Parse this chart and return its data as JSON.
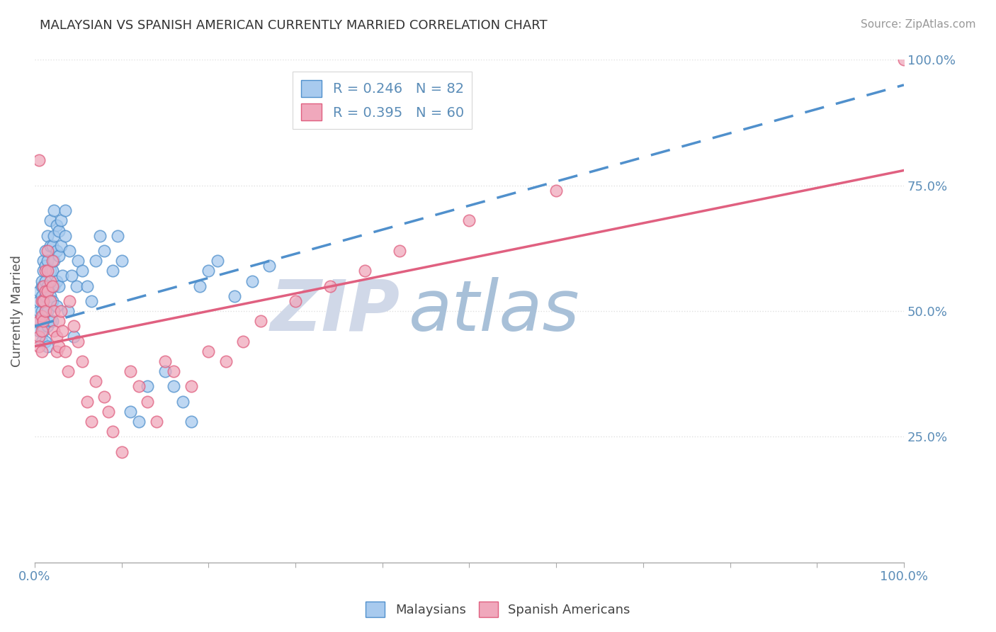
{
  "title": "MALAYSIAN VS SPANISH AMERICAN CURRENTLY MARRIED CORRELATION CHART",
  "source": "Source: ZipAtlas.com",
  "ylabel": "Currently Married",
  "R_malaysian": 0.246,
  "N_malaysian": 82,
  "R_spanish": 0.395,
  "N_spanish": 60,
  "color_malaysian": "#A8CAEE",
  "color_spanish": "#F0A8BC",
  "trend_malaysian_color": "#5090CC",
  "trend_spanish_color": "#E06080",
  "legend_label_malaysian": "Malaysians",
  "legend_label_spanish": "Spanish Americans",
  "watermark_zip": "ZIP",
  "watermark_atlas": "atlas",
  "watermark_color_zip": "#D0D8E8",
  "watermark_color_atlas": "#A8C0D8",
  "title_fontsize": 13,
  "axis_label_color": "#5B8DB8",
  "grid_color": "#E0E0E0",
  "xlim": [
    0.0,
    1.0
  ],
  "ylim": [
    0.0,
    1.0
  ],
  "ytick_positions": [
    0.25,
    0.5,
    0.75,
    1.0
  ],
  "ytick_labels_right": [
    "25.0%",
    "50.0%",
    "75.0%",
    "100.0%"
  ],
  "xtick_labels_shown": [
    "0.0%",
    "100.0%"
  ],
  "trend_m_x0": 0.0,
  "trend_m_y0": 0.47,
  "trend_m_x1": 1.0,
  "trend_m_y1": 0.95,
  "trend_s_x0": 0.0,
  "trend_s_y0": 0.43,
  "trend_s_x1": 1.0,
  "trend_s_y1": 0.78,
  "malaysian_x": [
    0.005,
    0.005,
    0.005,
    0.005,
    0.005,
    0.008,
    0.008,
    0.008,
    0.008,
    0.008,
    0.008,
    0.01,
    0.01,
    0.01,
    0.01,
    0.01,
    0.01,
    0.012,
    0.012,
    0.012,
    0.012,
    0.012,
    0.012,
    0.015,
    0.015,
    0.015,
    0.015,
    0.015,
    0.015,
    0.018,
    0.018,
    0.018,
    0.018,
    0.018,
    0.02,
    0.02,
    0.02,
    0.02,
    0.022,
    0.022,
    0.022,
    0.022,
    0.025,
    0.025,
    0.025,
    0.025,
    0.028,
    0.028,
    0.028,
    0.03,
    0.03,
    0.032,
    0.035,
    0.035,
    0.038,
    0.04,
    0.042,
    0.045,
    0.048,
    0.05,
    0.055,
    0.06,
    0.065,
    0.07,
    0.075,
    0.08,
    0.09,
    0.095,
    0.1,
    0.11,
    0.12,
    0.13,
    0.15,
    0.16,
    0.17,
    0.18,
    0.19,
    0.2,
    0.21,
    0.23,
    0.25,
    0.27
  ],
  "malaysian_y": [
    0.5,
    0.52,
    0.48,
    0.46,
    0.54,
    0.55,
    0.53,
    0.5,
    0.47,
    0.56,
    0.44,
    0.58,
    0.55,
    0.52,
    0.49,
    0.46,
    0.6,
    0.62,
    0.59,
    0.56,
    0.53,
    0.5,
    0.44,
    0.65,
    0.6,
    0.55,
    0.5,
    0.47,
    0.43,
    0.63,
    0.58,
    0.53,
    0.48,
    0.68,
    0.63,
    0.58,
    0.52,
    0.48,
    0.7,
    0.65,
    0.6,
    0.55,
    0.67,
    0.62,
    0.56,
    0.51,
    0.66,
    0.61,
    0.55,
    0.68,
    0.63,
    0.57,
    0.7,
    0.65,
    0.5,
    0.62,
    0.57,
    0.45,
    0.55,
    0.6,
    0.58,
    0.55,
    0.52,
    0.6,
    0.65,
    0.62,
    0.58,
    0.65,
    0.6,
    0.3,
    0.28,
    0.35,
    0.38,
    0.35,
    0.32,
    0.28,
    0.55,
    0.58,
    0.6,
    0.53,
    0.56,
    0.59
  ],
  "spanish_x": [
    0.005,
    0.005,
    0.005,
    0.005,
    0.008,
    0.008,
    0.008,
    0.008,
    0.01,
    0.01,
    0.01,
    0.012,
    0.012,
    0.012,
    0.015,
    0.015,
    0.015,
    0.018,
    0.018,
    0.02,
    0.02,
    0.022,
    0.022,
    0.025,
    0.025,
    0.028,
    0.028,
    0.03,
    0.032,
    0.035,
    0.038,
    0.04,
    0.045,
    0.05,
    0.055,
    0.06,
    0.065,
    0.07,
    0.08,
    0.085,
    0.09,
    0.1,
    0.11,
    0.12,
    0.13,
    0.14,
    0.15,
    0.16,
    0.18,
    0.2,
    0.22,
    0.24,
    0.26,
    0.3,
    0.34,
    0.38,
    0.42,
    0.5,
    0.6,
    1.0
  ],
  "spanish_y": [
    0.8,
    0.48,
    0.45,
    0.43,
    0.52,
    0.49,
    0.46,
    0.42,
    0.55,
    0.52,
    0.48,
    0.58,
    0.54,
    0.5,
    0.62,
    0.58,
    0.54,
    0.56,
    0.52,
    0.6,
    0.55,
    0.5,
    0.46,
    0.45,
    0.42,
    0.48,
    0.43,
    0.5,
    0.46,
    0.42,
    0.38,
    0.52,
    0.47,
    0.44,
    0.4,
    0.32,
    0.28,
    0.36,
    0.33,
    0.3,
    0.26,
    0.22,
    0.38,
    0.35,
    0.32,
    0.28,
    0.4,
    0.38,
    0.35,
    0.42,
    0.4,
    0.44,
    0.48,
    0.52,
    0.55,
    0.58,
    0.62,
    0.68,
    0.74,
    1.0
  ]
}
